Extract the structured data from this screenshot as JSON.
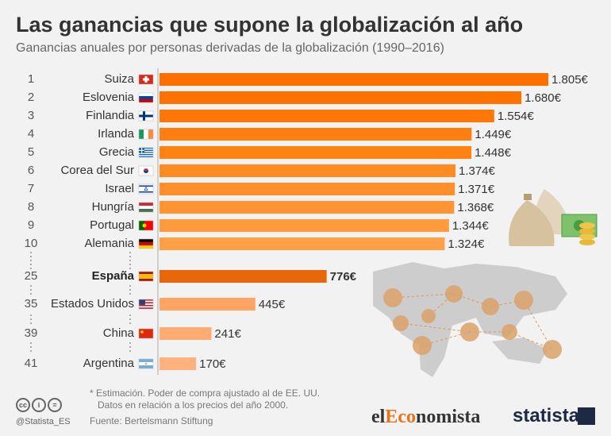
{
  "title": "Las ganancias que supone la globalización al año",
  "subtitle": "Ganancias anuales por personas derivadas de la globalización (1990–2016)",
  "chart_data": {
    "type": "bar",
    "orientation": "horizontal",
    "unit": "€",
    "ranks": [
      "1",
      "2",
      "3",
      "4",
      "5",
      "6",
      "7",
      "8",
      "9",
      "10",
      "25",
      "35",
      "39",
      "41"
    ],
    "categories": [
      "Suiza",
      "Eslovenia",
      "Finlandia",
      "Irlanda",
      "Grecia",
      "Corea del Sur",
      "Israel",
      "Hungría",
      "Portugal",
      "Alemania",
      "España",
      "Estados Unidos",
      "China",
      "Argentina"
    ],
    "values": [
      1805,
      1680,
      1554,
      1449,
      1448,
      1374,
      1371,
      1368,
      1344,
      1324,
      776,
      445,
      241,
      170
    ],
    "value_labels": [
      "1.805€",
      "1.680€",
      "1.554€",
      "1.449€",
      "1.448€",
      "1.374€",
      "1.371€",
      "1.368€",
      "1.344€",
      "1.324€",
      "776€",
      "445€",
      "241€",
      "170€"
    ],
    "highlight": "España",
    "xlim": [
      0,
      1805
    ],
    "bar_colors": [
      "#ff6f00",
      "#ff7200",
      "#ff7807",
      "#ff7e0f",
      "#ff8213",
      "#ff8b23",
      "#ff8f2b",
      "#ff9433",
      "#ff9a3d",
      "#ffa047",
      "#e8670a",
      "#ffa463",
      "#ffac74",
      "#ffb27e"
    ]
  },
  "footnote": {
    "line1": "* Estimación. Poder de compra ajustado al de EE. UU.",
    "line2": "Datos en relación a los precios del año 2000."
  },
  "source": "Fuente: Bertelsmann Stiftung",
  "handle": "@Statista_ES",
  "logos": {
    "ec_pre": "el",
    "ec_mid": "Eco",
    "ec_post": "nomista",
    "statista": "statista"
  },
  "colors": {
    "accent": "#ff6f00",
    "highlight": "#e8670a",
    "background": "#f2f2f2"
  }
}
